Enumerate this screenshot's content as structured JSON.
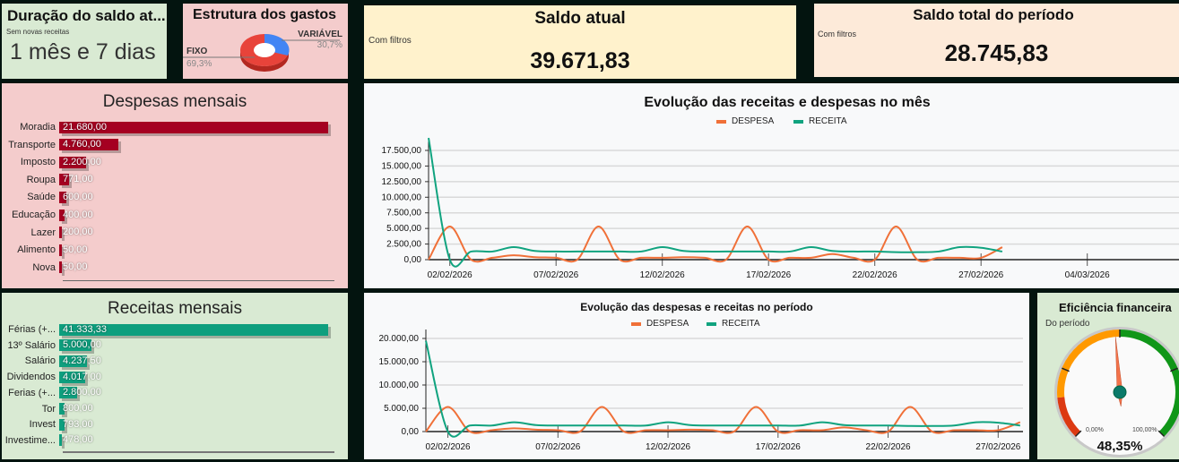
{
  "colors": {
    "despesa": "#f07038",
    "receita": "#10a37f",
    "despesa_bar": "#a50021",
    "receita_bar": "#0e9f7e",
    "pie_fixo": "#e8433a",
    "pie_variavel": "#4285f4"
  },
  "duracao": {
    "title": "Duração do saldo at...",
    "subtitle": "Sem novas receitas",
    "value": "1 mês e 7 dias"
  },
  "estrutura": {
    "title": "Estrutura dos gastos",
    "slices": [
      {
        "label": "FIXO",
        "pct": "69,3%",
        "value": 69.3
      },
      {
        "label": "VARIÁVEL",
        "pct": "30,7%",
        "value": 30.7
      }
    ]
  },
  "saldo_atual": {
    "title": "Saldo atual",
    "subtitle": "Com filtros",
    "value": "39.671,83"
  },
  "saldo_total": {
    "title": "Saldo total do período",
    "subtitle": "Com filtros",
    "value": "28.745,83"
  },
  "despesas": {
    "title": "Despesas mensais",
    "items": [
      {
        "label": "Moradia",
        "value": 21680,
        "text": "21.680,00"
      },
      {
        "label": "Transporte",
        "value": 4760,
        "text": "4.760,00"
      },
      {
        "label": "Imposto",
        "value": 2200,
        "text": "2.200,00"
      },
      {
        "label": "Roupa",
        "value": 771,
        "text": "771,00"
      },
      {
        "label": "Saúde",
        "value": 600,
        "text": "600,00"
      },
      {
        "label": "Educação",
        "value": 400,
        "text": "400,00"
      },
      {
        "label": "Lazer",
        "value": 200,
        "text": "200,00"
      },
      {
        "label": "Alimento",
        "value": 50,
        "text": "50,00"
      },
      {
        "label": "Nova",
        "value": 50,
        "text": "50,00"
      }
    ]
  },
  "receitas": {
    "title": "Receitas mensais",
    "items": [
      {
        "label": "Férias (+...",
        "value": 41333.33,
        "text": "41.333,33"
      },
      {
        "label": "13º Salário",
        "value": 5000,
        "text": "5.000,00"
      },
      {
        "label": "Salário",
        "value": 4237.5,
        "text": "4.237,50"
      },
      {
        "label": "Dividendos",
        "value": 4017,
        "text": "4.017,00"
      },
      {
        "label": "Ferias (+...",
        "value": 2800,
        "text": "2.800,00"
      },
      {
        "label": "Tor",
        "value": 800,
        "text": "800,00"
      },
      {
        "label": "Invest",
        "value": 793,
        "text": "793,00"
      },
      {
        "label": "Investime...",
        "value": 478,
        "text": "478,00"
      }
    ]
  },
  "chart_data": [
    {
      "type": "line",
      "title": "Evolução das receitas e despesas no mês",
      "legend": "top",
      "grid": true,
      "x": [
        "01/02/2026",
        "02/02/2026",
        "03/02/2026",
        "04/02/2026",
        "05/02/2026",
        "06/02/2026",
        "07/02/2026",
        "08/02/2026",
        "09/02/2026",
        "10/02/2026",
        "11/02/2026",
        "12/02/2026",
        "13/02/2026",
        "14/02/2026",
        "15/02/2026",
        "16/02/2026",
        "17/02/2026",
        "18/02/2026",
        "19/02/2026",
        "20/02/2026",
        "21/02/2026",
        "22/02/2026",
        "23/02/2026",
        "24/02/2026",
        "25/02/2026",
        "26/02/2026",
        "27/02/2026",
        "28/02/2026"
      ],
      "xticks": [
        "02/02/2026",
        "07/02/2026",
        "12/02/2026",
        "17/02/2026",
        "22/02/2026",
        "27/02/2026",
        "04/03/2026"
      ],
      "yticks": [
        "0,00",
        "2.500,00",
        "5.000,00",
        "7.500,00",
        "10.000,00",
        "12.500,00",
        "15.000,00",
        "17.500,00"
      ],
      "ylim": [
        0,
        17500
      ],
      "series": [
        {
          "name": "DESPESA",
          "values": [
            0,
            5300,
            0,
            300,
            700,
            400,
            300,
            0,
            5300,
            0,
            300,
            300,
            400,
            300,
            0,
            5300,
            0,
            300,
            300,
            900,
            300,
            0,
            5300,
            0,
            300,
            300,
            300,
            2000
          ]
        },
        {
          "name": "RECEITA",
          "values": [
            19500,
            0,
            1300,
            1300,
            2000,
            1400,
            1300,
            1300,
            1300,
            1300,
            1300,
            2000,
            1400,
            1300,
            1300,
            1300,
            1300,
            1300,
            2000,
            1400,
            1300,
            1300,
            1200,
            1200,
            1300,
            2000,
            1900,
            1300
          ]
        }
      ]
    },
    {
      "type": "line",
      "title": "Evolução das despesas e receitas no período",
      "legend": "top",
      "grid": true,
      "xticks": [
        "02/02/2026",
        "07/02/2026",
        "12/02/2026",
        "17/02/2026",
        "22/02/2026",
        "27/02/2026"
      ],
      "yticks": [
        "0,00",
        "5.000,00",
        "10.000,00",
        "15.000,00",
        "20.000,00"
      ],
      "ylim": [
        0,
        20000
      ],
      "series": [
        {
          "name": "DESPESA",
          "values": [
            0,
            5300,
            0,
            300,
            700,
            400,
            300,
            0,
            5300,
            0,
            300,
            300,
            400,
            300,
            0,
            5300,
            0,
            300,
            300,
            900,
            300,
            0,
            5300,
            0,
            300,
            300,
            300,
            2000
          ]
        },
        {
          "name": "RECEITA",
          "values": [
            19500,
            0,
            1300,
            1300,
            2000,
            1400,
            1300,
            1300,
            1300,
            1300,
            1300,
            2000,
            1400,
            1300,
            1300,
            1300,
            1300,
            1300,
            2000,
            1400,
            1300,
            1300,
            1200,
            1200,
            1300,
            2000,
            1900,
            1300
          ]
        }
      ]
    }
  ],
  "eficiencia": {
    "title": "Eficiência financeira",
    "subtitle": "Do período",
    "min": "0,00%",
    "max": "100,00%",
    "value": 48.35,
    "text": "48,35%"
  }
}
